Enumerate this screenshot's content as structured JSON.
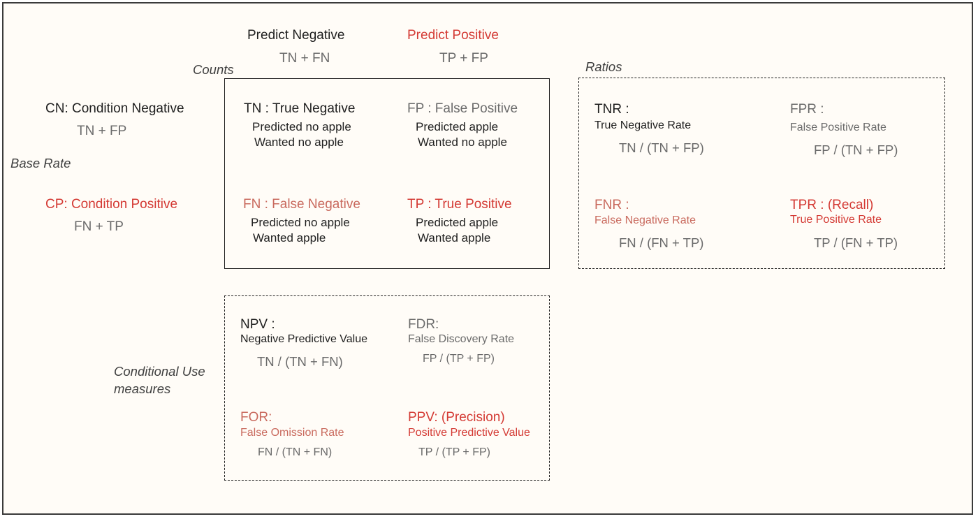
{
  "headers": {
    "predict_negative": {
      "label": "Predict Negative",
      "formula": "TN + FN"
    },
    "predict_positive": {
      "label": "Predict Positive",
      "formula": "TP + FP"
    },
    "condition_negative": {
      "label": "CN: Condition Negative",
      "formula": "TN + FP"
    },
    "condition_positive": {
      "label": "CP: Condition Positive",
      "formula": "FN + TP"
    },
    "base_rate": "Base Rate",
    "counts": "Counts",
    "ratios": "Ratios",
    "conditional_use_line1": "Conditional Use",
    "conditional_use_line2": "measures"
  },
  "counts": {
    "tn": {
      "title": "TN : True Negative",
      "line1": "Predicted no apple",
      "line2": "Wanted no apple"
    },
    "fp": {
      "title": "FP : False Positive",
      "line1": "Predicted apple",
      "line2": "Wanted no apple"
    },
    "fn": {
      "title": "FN : False Negative",
      "line1": "Predicted no apple",
      "line2": "Wanted apple"
    },
    "tp": {
      "title": "TP : True Positive",
      "line1": "Predicted apple",
      "line2": "Wanted apple"
    }
  },
  "ratios": {
    "tnr": {
      "abbr": "TNR :",
      "name": "True Negative Rate",
      "formula": "TN / (TN + FP)"
    },
    "fpr": {
      "abbr": "FPR :",
      "name": "False Positive Rate",
      "formula": "FP / (TN + FP)"
    },
    "fnr": {
      "abbr": "FNR :",
      "name": "False Negative Rate",
      "formula": "FN / (FN + TP)"
    },
    "tpr": {
      "abbr": "TPR :  (Recall)",
      "name": "True Positive Rate",
      "formula": "TP / (FN + TP)"
    }
  },
  "conditional": {
    "npv": {
      "abbr": "NPV :",
      "name": "Negative Predictive Value",
      "formula": "TN / (TN + FN)"
    },
    "fdr": {
      "abbr": "FDR:",
      "name": "False Discovery Rate",
      "formula": "FP / (TP + FP)"
    },
    "for": {
      "abbr": "FOR:",
      "name": "False Omission Rate",
      "formula": "FN / (TN + FN)"
    },
    "ppv": {
      "abbr": "PPV:  (Precision)",
      "name": "Positive Predictive Value",
      "formula": "TP / (TP + FP)"
    }
  },
  "colors": {
    "negative_text": "#1f1f1f",
    "muted_text": "#6b6b6b",
    "positive_text": "#d43a34",
    "false_negative_text": "#c96a5e",
    "background": "#fffcf7"
  }
}
